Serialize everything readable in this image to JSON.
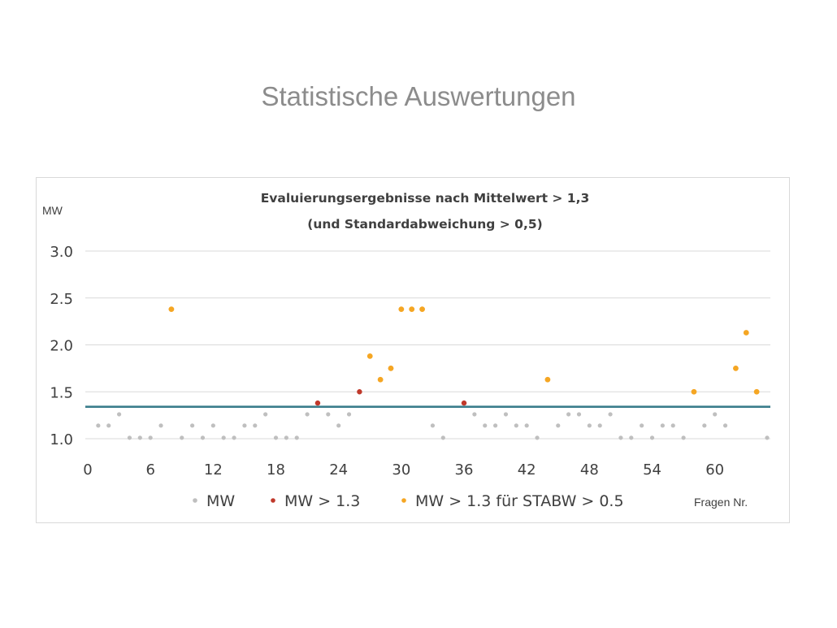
{
  "slide": {
    "title": "Statistische Auswertungen"
  },
  "chart_data": {
    "type": "scatter",
    "title_line1": "Evaluierungsergebnisse nach Mittelwert > 1,3",
    "title_line2": "(und Standardabweichung > 0,5)",
    "ylabel": "MW",
    "xlabel": "Fragen Nr.",
    "xlim": [
      0,
      65
    ],
    "ylim": [
      1.0,
      3.0
    ],
    "x_ticks": [
      0,
      6,
      12,
      18,
      24,
      30,
      36,
      42,
      48,
      54,
      60
    ],
    "y_ticks": [
      1.0,
      1.5,
      2.0,
      2.5,
      3.0
    ],
    "y_tick_labels": [
      "1.0",
      "1.5",
      "2.0",
      "2.5",
      "3.0"
    ],
    "grid": true,
    "threshold": 1.34,
    "legend_position": "bottom",
    "colors": {
      "MW": "#bfbfbf",
      "MW > 1.3": "#c0392b",
      "MW > 1.3 für STABW > 0.5": "#f5a623",
      "threshold": "#3a7d8c"
    },
    "series": [
      {
        "name": "MW",
        "color": "#bfbfbf",
        "points": [
          [
            1,
            1.14
          ],
          [
            2,
            1.14
          ],
          [
            3,
            1.26
          ],
          [
            4,
            1.01
          ],
          [
            5,
            1.01
          ],
          [
            6,
            1.01
          ],
          [
            7,
            1.14
          ],
          [
            9,
            1.01
          ],
          [
            10,
            1.14
          ],
          [
            11,
            1.01
          ],
          [
            12,
            1.14
          ],
          [
            13,
            1.01
          ],
          [
            14,
            1.01
          ],
          [
            15,
            1.14
          ],
          [
            16,
            1.14
          ],
          [
            17,
            1.26
          ],
          [
            18,
            1.01
          ],
          [
            19,
            1.01
          ],
          [
            20,
            1.01
          ],
          [
            21,
            1.26
          ],
          [
            23,
            1.26
          ],
          [
            24,
            1.14
          ],
          [
            25,
            1.26
          ],
          [
            33,
            1.14
          ],
          [
            34,
            1.01
          ],
          [
            37,
            1.26
          ],
          [
            38,
            1.14
          ],
          [
            39,
            1.14
          ],
          [
            40,
            1.26
          ],
          [
            41,
            1.14
          ],
          [
            42,
            1.14
          ],
          [
            43,
            1.01
          ],
          [
            45,
            1.14
          ],
          [
            46,
            1.26
          ],
          [
            47,
            1.26
          ],
          [
            48,
            1.14
          ],
          [
            49,
            1.14
          ],
          [
            50,
            1.26
          ],
          [
            51,
            1.01
          ],
          [
            52,
            1.01
          ],
          [
            53,
            1.14
          ],
          [
            54,
            1.01
          ],
          [
            55,
            1.14
          ],
          [
            56,
            1.14
          ],
          [
            57,
            1.01
          ],
          [
            59,
            1.14
          ],
          [
            60,
            1.26
          ],
          [
            61,
            1.14
          ],
          [
            65,
            1.01
          ]
        ]
      },
      {
        "name": "MW > 1.3",
        "color": "#c0392b",
        "points": [
          [
            22,
            1.38
          ],
          [
            26,
            1.5
          ],
          [
            29,
            1.75
          ],
          [
            36,
            1.38
          ]
        ]
      },
      {
        "name": "MW > 1.3 für STABW > 0.5",
        "color": "#f5a623",
        "points": [
          [
            8,
            2.38
          ],
          [
            27,
            1.88
          ],
          [
            28,
            1.63
          ],
          [
            29,
            1.75
          ],
          [
            30,
            2.38
          ],
          [
            31,
            2.38
          ],
          [
            32,
            2.38
          ],
          [
            44,
            1.63
          ],
          [
            58,
            1.5
          ],
          [
            62,
            1.75
          ],
          [
            63,
            2.13
          ],
          [
            64,
            1.5
          ]
        ]
      }
    ]
  }
}
